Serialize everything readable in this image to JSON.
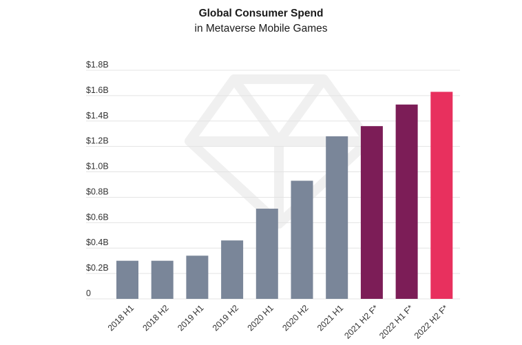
{
  "chart_data": {
    "type": "bar",
    "title": "Global Consumer Spend",
    "subtitle": "in Metaverse Mobile Games",
    "xlabel": "",
    "ylabel": "",
    "ylim": [
      0,
      1.8
    ],
    "yticks": [
      0,
      0.2,
      0.4,
      0.6,
      0.8,
      1.0,
      1.2,
      1.4,
      1.6,
      1.8
    ],
    "ytick_labels": [
      "0",
      "$0.2B",
      "$0.4B",
      "$0.6B",
      "$0.8B",
      "$1.0B",
      "$1.2B",
      "$1.4B",
      "$1.6B",
      "$1.8B"
    ],
    "grid": true,
    "categories": [
      "2018 H1",
      "2018 H2",
      "2019 H1",
      "2019 H2",
      "2020 H1",
      "2020 H2",
      "2021 H1",
      "2021 H2 F*",
      "2022 H1 F*",
      "2022 H2 F*"
    ],
    "values": [
      0.3,
      0.3,
      0.34,
      0.46,
      0.71,
      0.93,
      1.28,
      1.36,
      1.53,
      1.63
    ],
    "bar_colors": [
      "#7a8699",
      "#7a8699",
      "#7a8699",
      "#7a8699",
      "#7a8699",
      "#7a8699",
      "#7a8699",
      "#7c1d57",
      "#7c1d57",
      "#e8305e"
    ]
  }
}
